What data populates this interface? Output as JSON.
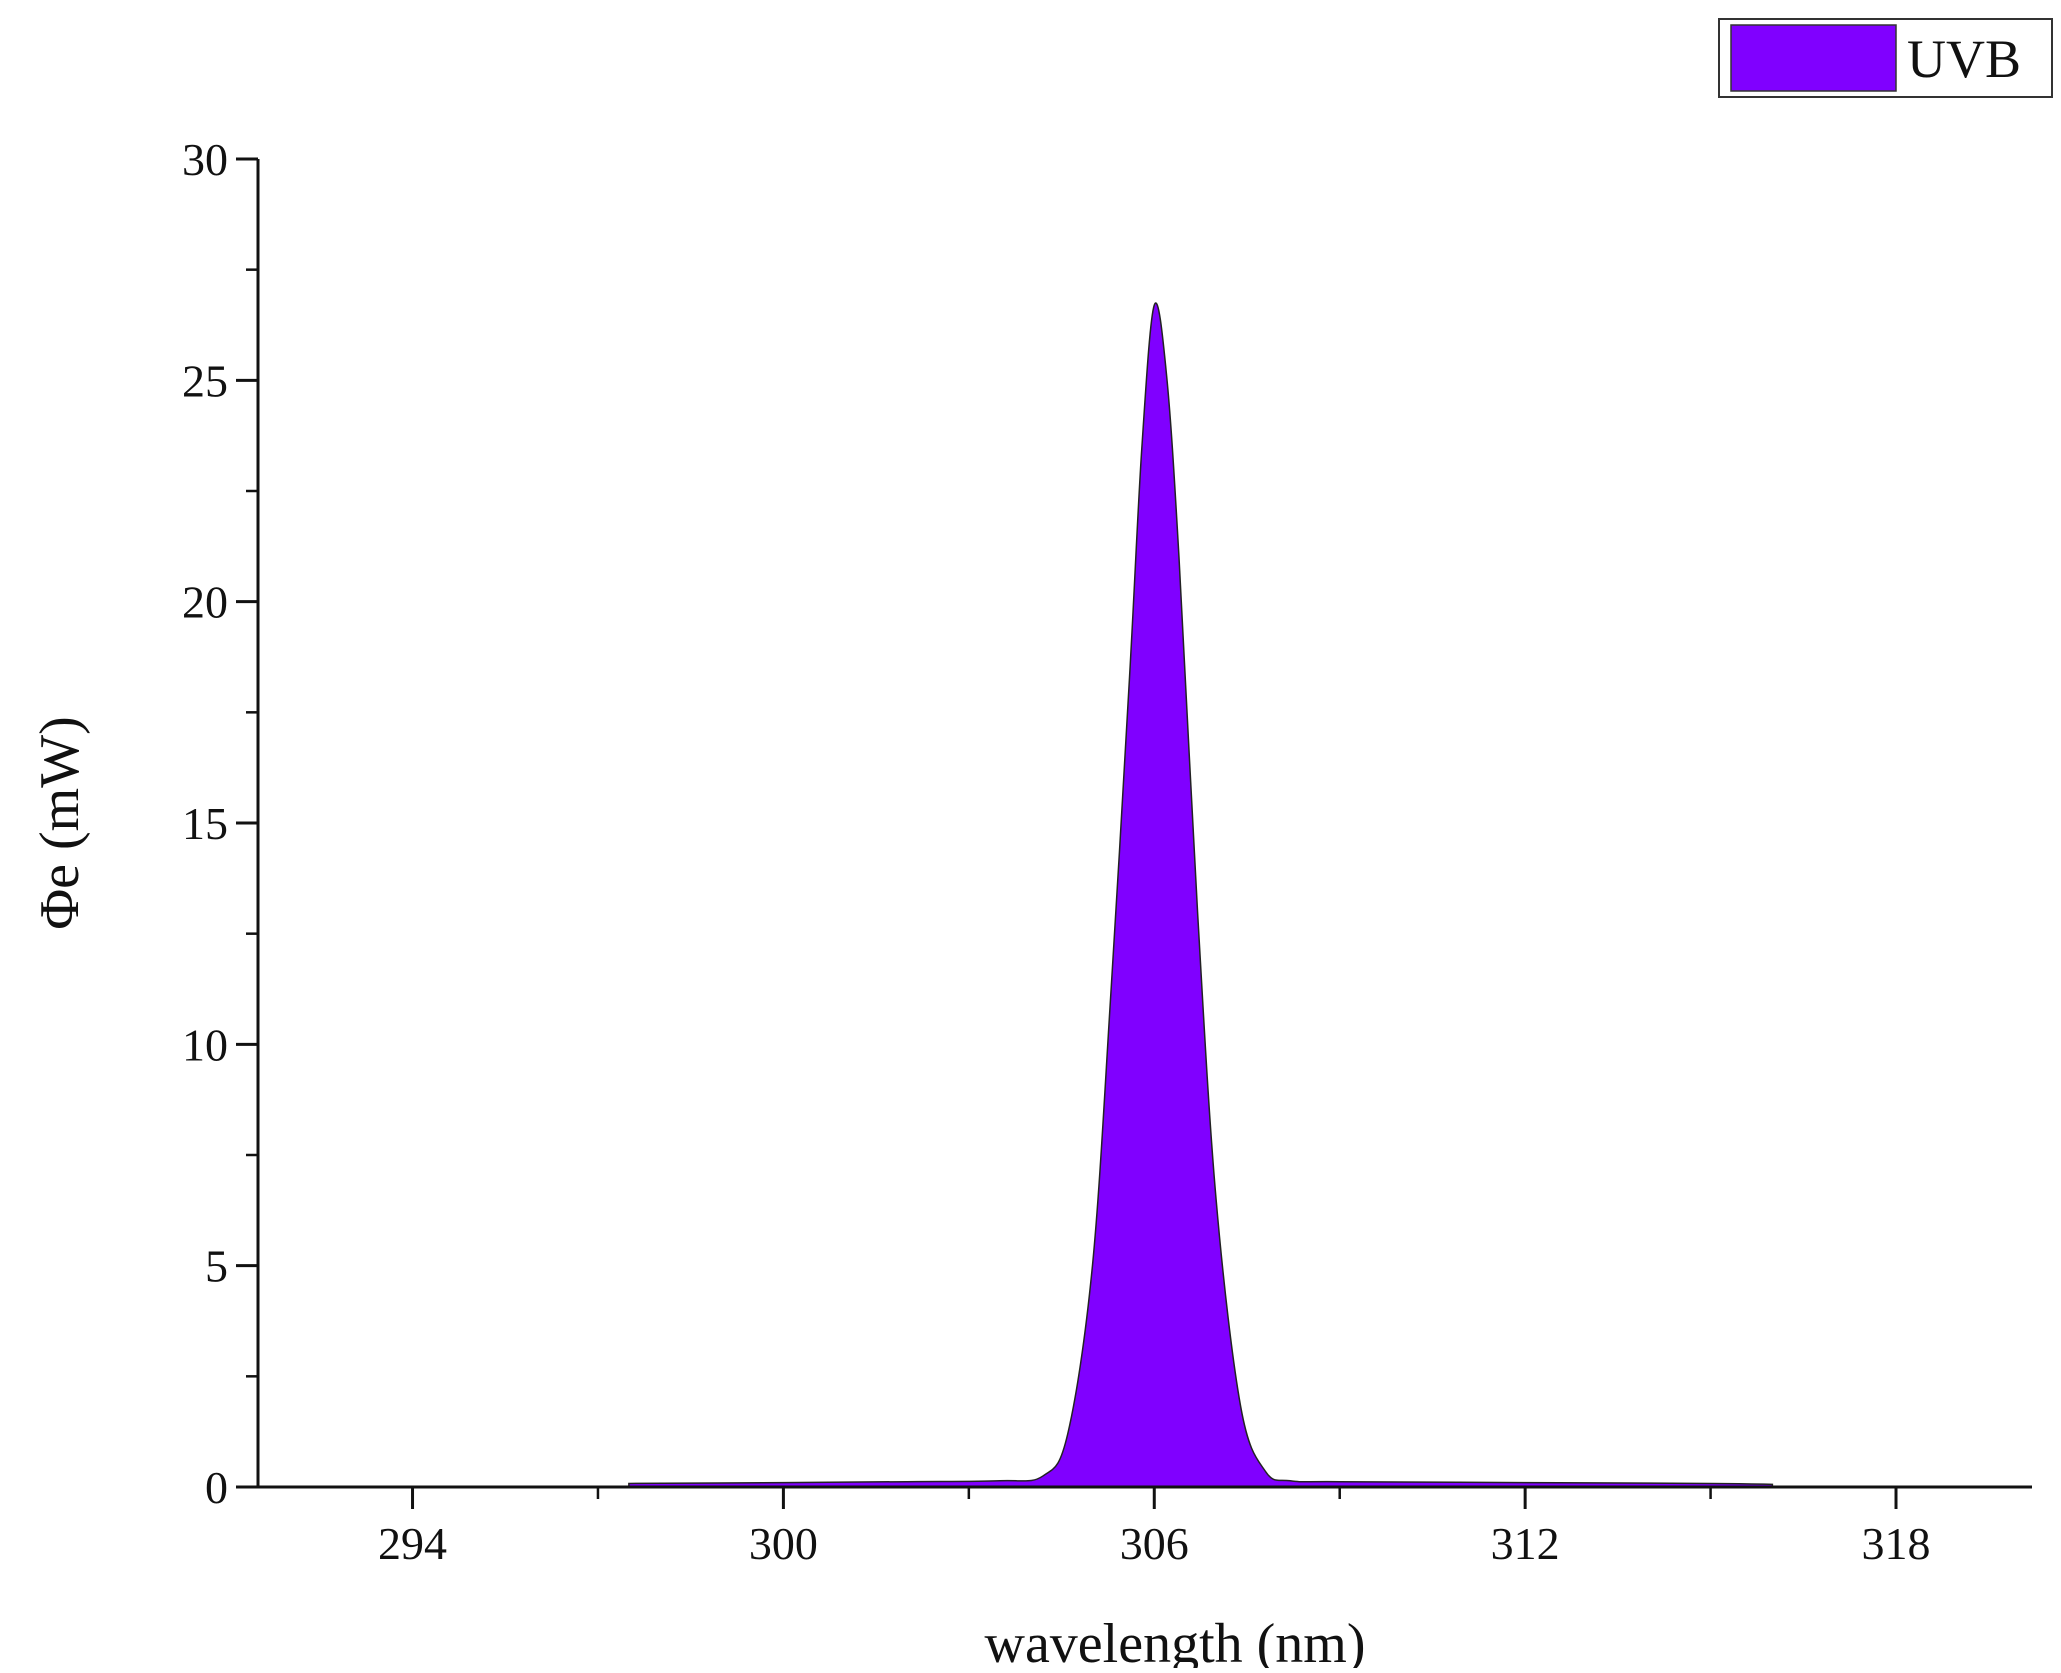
{
  "chart_data": {
    "type": "area",
    "xlabel": "wavelength (nm)",
    "ylabel": "Φe (mW)",
    "xlim": [
      291.5,
      320.2
    ],
    "ylim": [
      0,
      30
    ],
    "x_ticks": [
      294,
      300,
      306,
      312,
      318
    ],
    "y_ticks": [
      0,
      5,
      10,
      15,
      20,
      25,
      30
    ],
    "grid": false,
    "legend_position": "top-right",
    "series": [
      {
        "name": "UVB",
        "color": "#8000ff",
        "peak_x": 306.0,
        "peak_y": 26.7,
        "x": [
          297.5,
          300,
          302,
          303.5,
          304.2,
          304.6,
          305.0,
          305.3,
          305.6,
          305.8,
          306.0,
          306.2,
          306.4,
          306.7,
          307.0,
          307.4,
          307.8,
          308.2,
          309,
          312,
          315,
          316.0
        ],
        "y": [
          0.08,
          0.1,
          0.12,
          0.14,
          0.25,
          1.2,
          5.0,
          11.2,
          18.3,
          23.5,
          26.7,
          25.1,
          21.0,
          13.0,
          6.5,
          1.8,
          0.35,
          0.14,
          0.12,
          0.1,
          0.08,
          0.06
        ]
      }
    ]
  }
}
